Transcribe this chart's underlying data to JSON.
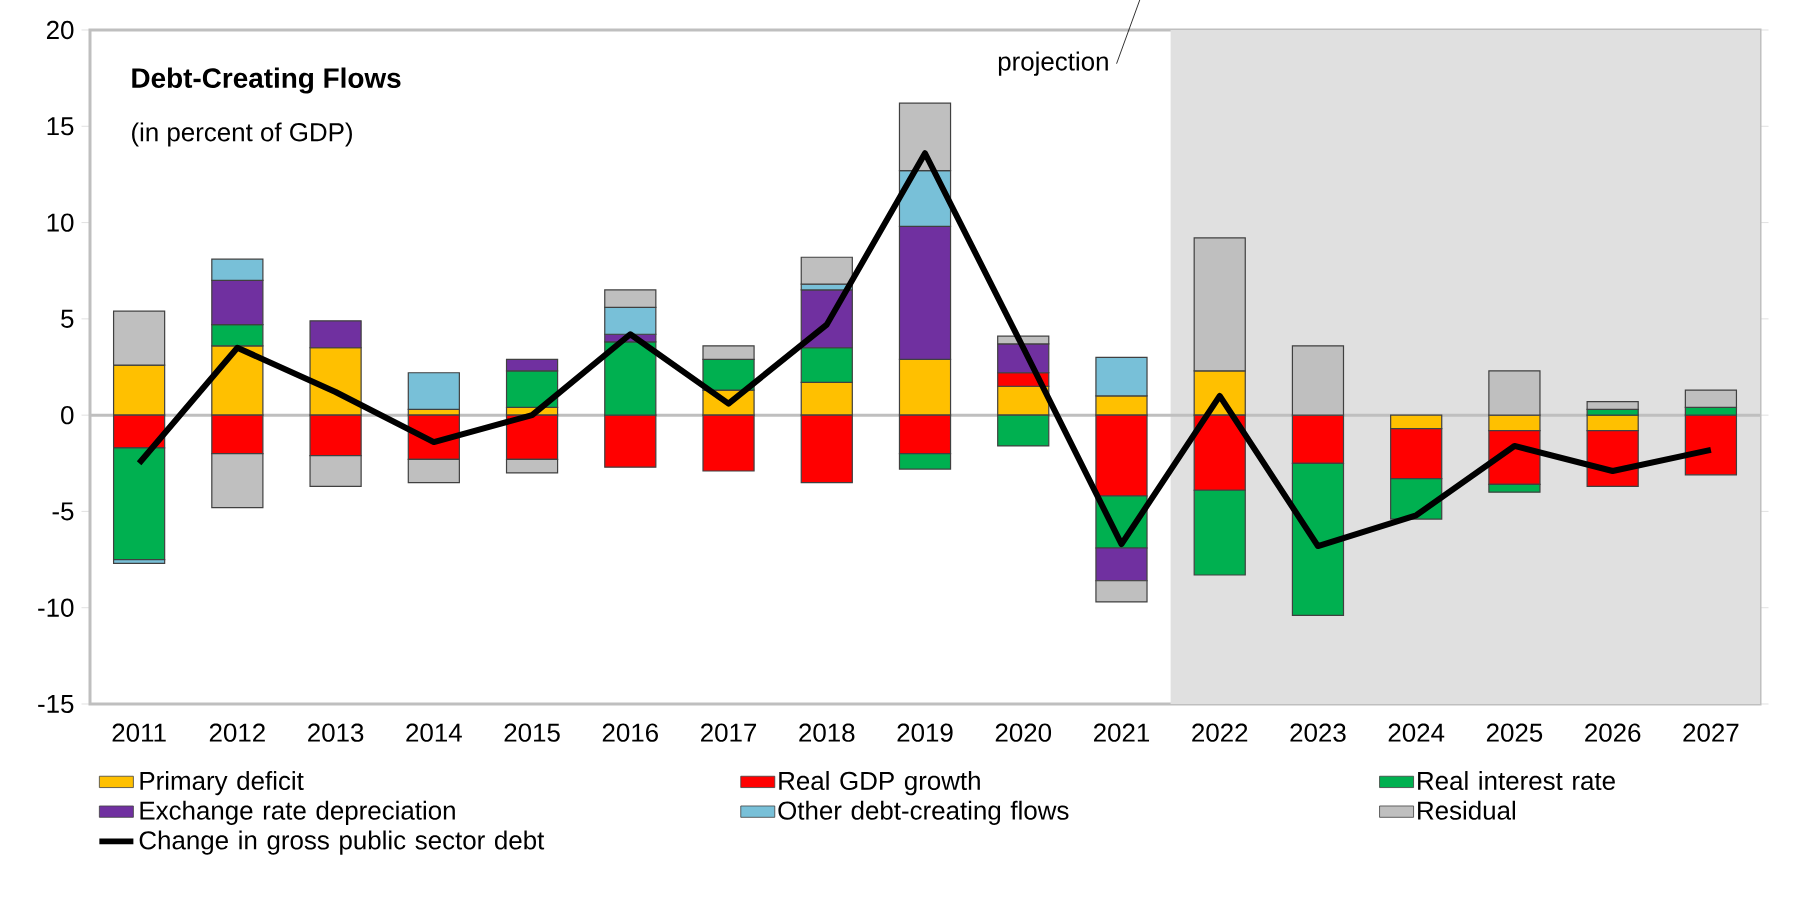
{
  "chart_data": {
    "type": "bar",
    "stacked": true,
    "title": "Debt-Creating  Flows",
    "subtitle": "(in percent of GDP)",
    "categories": [
      "2011",
      "2012",
      "2013",
      "2014",
      "2015",
      "2016",
      "2017",
      "2018",
      "2019",
      "2020",
      "2021",
      "2022",
      "2023",
      "2024",
      "2025",
      "2026",
      "2027"
    ],
    "series": [
      {
        "name": "Primary deficit",
        "color": "#ffc000",
        "values": [
          2.6,
          3.6,
          3.5,
          0.3,
          0.4,
          null,
          1.3,
          1.7,
          2.9,
          1.5,
          1.0,
          2.3,
          null,
          -0.7,
          -0.8,
          -0.8,
          null
        ]
      },
      {
        "name": "Real GDP growth",
        "color": "#ff0000",
        "values": [
          -1.7,
          -2.0,
          -2.1,
          -2.3,
          -2.3,
          -2.7,
          -2.9,
          -3.5,
          -2.0,
          0.7,
          -4.2,
          -3.9,
          -2.5,
          -2.6,
          -2.8,
          -2.9,
          -3.1
        ]
      },
      {
        "name": "Real interest rate",
        "color": "#00b050",
        "values": [
          -5.8,
          1.1,
          null,
          null,
          1.9,
          3.8,
          1.6,
          1.8,
          -0.8,
          -1.6,
          -2.7,
          -4.4,
          -7.9,
          -2.1,
          -0.4,
          0.3,
          0.4
        ]
      },
      {
        "name": "Exchange rate depreciation",
        "color": "#7030a0",
        "values": [
          null,
          2.3,
          1.4,
          null,
          0.6,
          0.4,
          null,
          3.0,
          6.9,
          1.5,
          -1.7,
          null,
          null,
          null,
          null,
          null,
          null
        ]
      },
      {
        "name": "Other debt-creating flows",
        "color": "#78c0d8",
        "values": [
          -0.2,
          1.1,
          null,
          1.9,
          null,
          1.4,
          null,
          0.3,
          2.9,
          null,
          2.0,
          null,
          null,
          null,
          null,
          null,
          null
        ]
      },
      {
        "name": "Residual",
        "color": "#bfbfbf",
        "values": [
          2.8,
          -2.8,
          -1.6,
          -1.2,
          -0.7,
          0.9,
          0.7,
          1.4,
          3.5,
          0.4,
          -1.1,
          6.9,
          3.6,
          null,
          2.3,
          0.4,
          0.9
        ]
      },
      {
        "name": "Change in gross public sector debt",
        "type": "line",
        "color": "#000000",
        "values": [
          -2.5,
          3.5,
          1.2,
          -1.4,
          0.0,
          4.2,
          0.6,
          4.7,
          13.6,
          3.5,
          -6.7,
          1.0,
          -6.8,
          -5.2,
          -1.6,
          -2.9,
          -1.8
        ]
      }
    ],
    "ylim": [
      -15,
      20
    ],
    "yticks": [
      -15,
      -10,
      -5,
      0,
      5,
      10,
      15,
      20
    ],
    "bands": [
      {
        "axis": "x",
        "from": "2022",
        "to": "2027",
        "label": "projection",
        "color": "#e0e0e0"
      }
    ],
    "legend": "bottom"
  }
}
